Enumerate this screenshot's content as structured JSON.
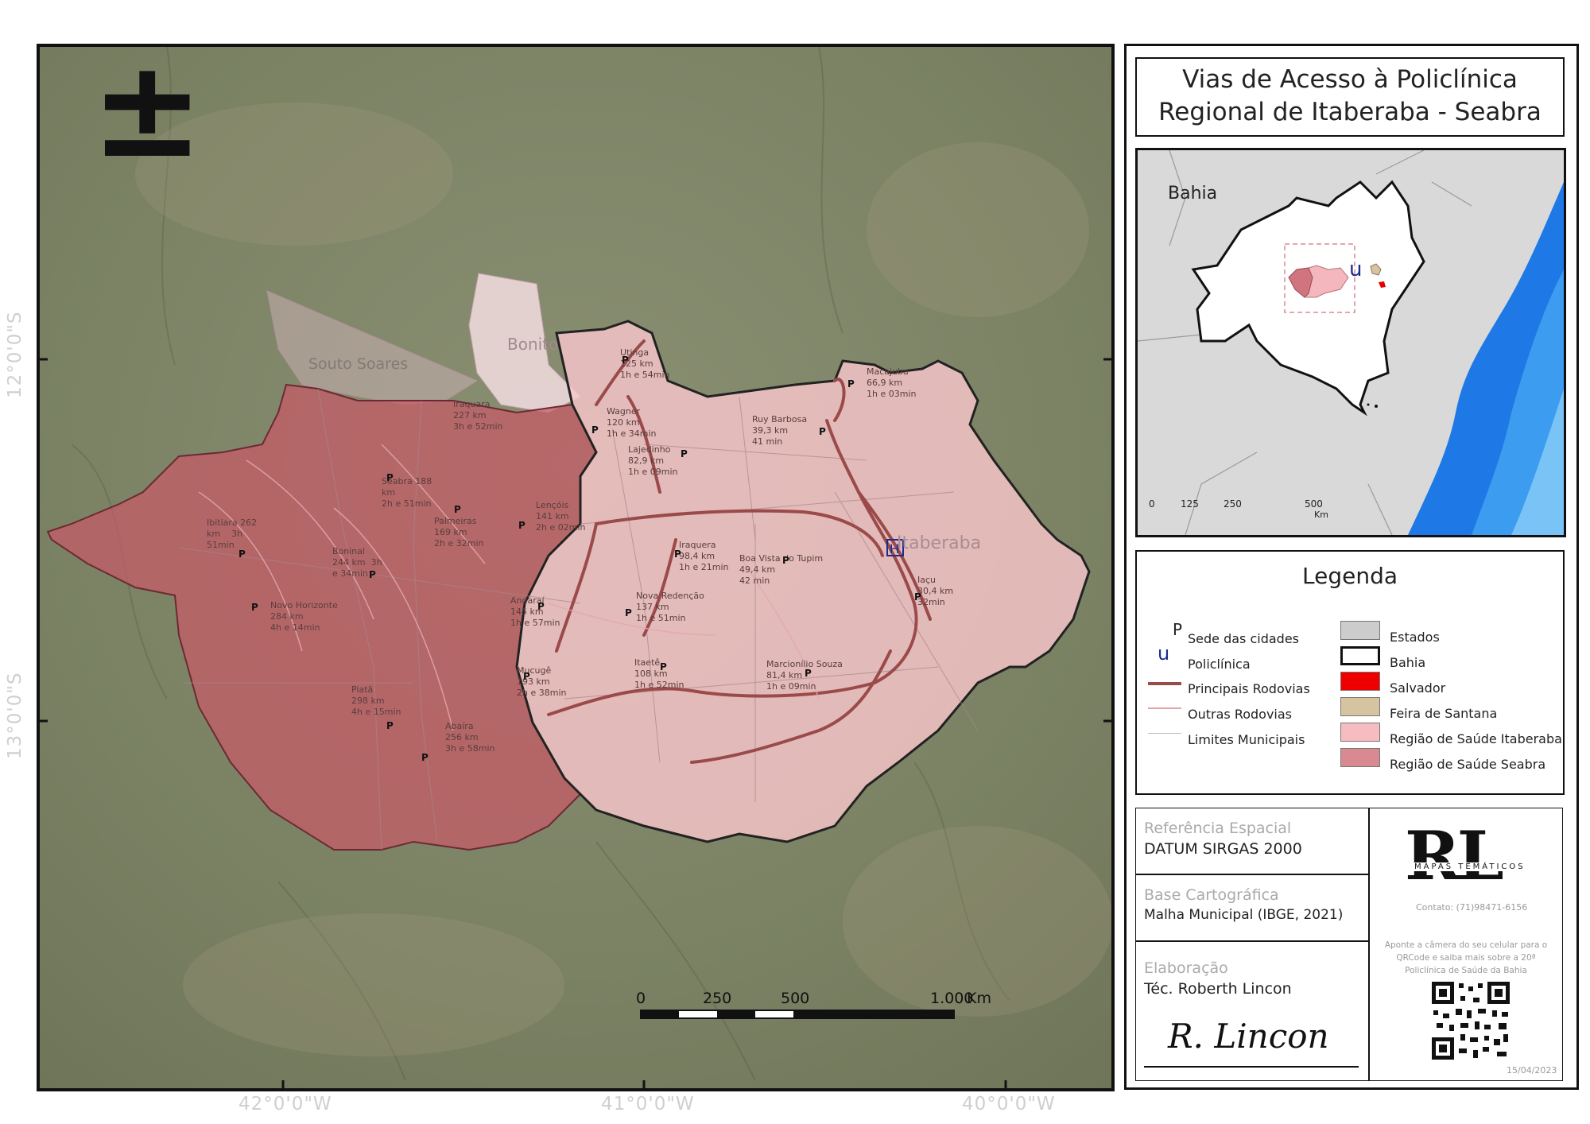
{
  "title": {
    "line1": "Vias de Acesso à Policlínica",
    "line2": "Regional de Itaberaba - Seabra"
  },
  "north_arrow_glyph": "±",
  "coords": {
    "lat1": "12°0'0\"S",
    "lat2": "13°0'0\"S",
    "lon1": "42°0'0\"W",
    "lon2": "41°0'0\"W",
    "lon3": "40°0'0\"W"
  },
  "map_labels": {
    "souto_soares": "Souto Soares",
    "bonito": "Bonito",
    "itaberaba": "Itaberaba",
    "utinga": "Utinga\n125 km\n1h e 54min",
    "macajuba": "Macajuba\n66,9 km\n1h e 03min",
    "wagner": "Wagner\n120 km\n1h e 34min",
    "ruy_barbosa": "Ruy Barbosa\n39,3 km\n41 min",
    "iraquara": "Iraquara\n227 km\n3h e 52min",
    "lajedinho": "Lajedinho\n82,9 km\n1h e 09min",
    "seabra": "Seabra 188\nkm\n2h e 51min",
    "lencois": "Lençóis\n141 km\n2h e 02min",
    "palmeiras": "Palmeiras\n169 km\n2h e 32min",
    "ibitiara": "Ibitiara 262\nkm    3h\n51min",
    "boninal": "Boninal\n244 km  3h\ne 34min",
    "piriquera": "Iraquera\n98,4 km\n1h e 21min",
    "boa_vista": "Boa Vista do Tupim\n49,4 km\n42 min",
    "iacu": "Iaçu\n30,4 km\n32min",
    "novo_horizonte": "Novo Horizonte\n284 km\n4h e 14min",
    "andarai": "Andaraí\n145 km\n1h e 57min",
    "nova_redencao": "Nova Redenção\n137 km\n1h e 51min",
    "mucuge": "Mucugê\n193 km\n2h e 38min",
    "itaete": "Itaetê\n108 km\n1h e 52min",
    "marcionilio": "Marcionílio Souza\n81,4 km\n1h e 09min",
    "piata": "Piatã\n298 km\n4h e 15min",
    "abaira": "Abaíra\n256 km\n3h e 58min"
  },
  "scale_bar": {
    "l0": "0",
    "l1": "250",
    "l2": "500",
    "l3": "1.000",
    "unit": "Km"
  },
  "inset": {
    "state_label": "Bahia",
    "scale": [
      "0",
      "125",
      "250",
      "500",
      "Km"
    ],
    "policlinic_glyph": "u"
  },
  "legend": {
    "title": "Legenda",
    "symbols": [
      {
        "glyph": "P",
        "label": "Sede das cidades"
      },
      {
        "glyph": "u",
        "label": "Policlínica"
      },
      {
        "label": "Principais Rodovias",
        "color": "#9b4a4a"
      },
      {
        "label": "Outras Rodovias",
        "color": "#e0a4ac"
      },
      {
        "label": "Limites Municipais",
        "color": "#b8b8b8"
      }
    ],
    "fills": [
      {
        "label": "Estados",
        "color": "#cccccc"
      },
      {
        "label": "Bahia",
        "color": "#ffffff"
      },
      {
        "label": "Salvador",
        "color": "#ee0000"
      },
      {
        "label": "Feira de Santana",
        "color": "#d6c3a0"
      },
      {
        "label": "Região de Saúde Itaberaba",
        "color": "#f6bcc0"
      },
      {
        "label": "Região de Saúde Seabra",
        "color": "#d88a90"
      }
    ]
  },
  "info": {
    "ref_head": "Referência Espacial",
    "ref_val": "DATUM SIRGAS 2000",
    "base_head": "Base Cartográfica",
    "base_val": "Malha Municipal (IBGE, 2021)",
    "elab_head": "Elaboração",
    "elab_val": "Téc. Roberth Lincon",
    "signature": "R. Lincon"
  },
  "brand": {
    "logo": "RL",
    "tagline": "MAPAS TEMÁTICOS",
    "contact": "Contato: (71)98471-6156",
    "qr_text": "Aponte a câmera do seu celular para o QRCode e saiba mais sobre a 20ª Policlínica de Saúde da Bahia",
    "date": "15/04/2023"
  }
}
